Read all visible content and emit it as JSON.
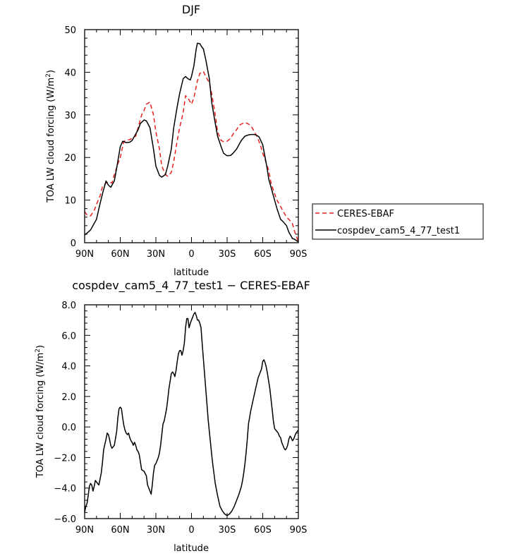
{
  "chart_data": [
    {
      "type": "line",
      "title": "DJF",
      "xlabel": "latitude",
      "ylabel": "TOA LW cloud forcing (W/m",
      "ylabel_sup": "2",
      "ylabel_end": ")",
      "xlim": [
        90,
        -90
      ],
      "ylim": [
        0,
        50
      ],
      "x_ticks": [
        90,
        60,
        30,
        0,
        -30,
        -60,
        -90
      ],
      "x_tick_labels": [
        "90N",
        "60N",
        "30N",
        "0",
        "30S",
        "60S",
        "90S"
      ],
      "y_ticks": [
        0,
        10,
        20,
        30,
        40,
        50
      ],
      "y_tick_labels": [
        "0",
        "10",
        "20",
        "30",
        "40",
        "50"
      ],
      "legend_position": "right",
      "series": [
        {
          "name": "CERES-EBAF",
          "color": "#e8201f",
          "dash": "dashed",
          "x": [
            90,
            88,
            85,
            82,
            80,
            77,
            75,
            72,
            70,
            67,
            65,
            62,
            60,
            57,
            55,
            52,
            50,
            47,
            45,
            42,
            40,
            38,
            35,
            32,
            30,
            27,
            25,
            22,
            20,
            17,
            15,
            12,
            10,
            7,
            5,
            3,
            0,
            -2,
            -5,
            -7,
            -10,
            -12,
            -15,
            -17,
            -20,
            -22,
            -25,
            -27,
            -30,
            -33,
            -35,
            -38,
            -40,
            -43,
            -45,
            -47,
            -50,
            -52,
            -55,
            -58,
            -60,
            -62,
            -65,
            -67,
            -70,
            -72,
            -75,
            -78,
            -80,
            -82,
            -85,
            -87,
            -90
          ],
          "y": [
            7.3,
            6.5,
            6.3,
            7.5,
            9,
            11,
            13.2,
            14,
            14.3,
            14,
            16,
            18.5,
            20,
            23.8,
            24,
            24.2,
            24.5,
            25,
            27,
            30,
            31,
            32.5,
            33,
            30,
            26,
            22,
            18,
            16,
            15.6,
            16.5,
            19,
            24,
            27,
            30.5,
            34.5,
            34,
            32.5,
            34,
            38,
            39.7,
            40.2,
            39,
            37.5,
            35,
            30,
            26,
            24,
            23.7,
            23.8,
            24.5,
            25.5,
            26.5,
            27.5,
            28,
            28.2,
            28,
            27.5,
            26.5,
            25,
            23,
            21,
            19.5,
            17,
            14,
            11.5,
            10,
            8.5,
            7,
            6,
            5.5,
            4.5,
            2.5,
            0.3
          ]
        },
        {
          "name": "cospdev_cam5_4_77_test1",
          "color": "#000000",
          "dash": "solid",
          "x": [
            90,
            87,
            85,
            82,
            80,
            78,
            75,
            73,
            72,
            70,
            68,
            67,
            65,
            63,
            60,
            58,
            55,
            52,
            50,
            48,
            45,
            43,
            40,
            38,
            35,
            32,
            30,
            27,
            25,
            22,
            20,
            17,
            15,
            12,
            10,
            7,
            5,
            3,
            1,
            0,
            -2,
            -4,
            -5,
            -7,
            -9,
            -10,
            -12,
            -15,
            -17,
            -20,
            -22,
            -25,
            -27,
            -30,
            -33,
            -35,
            -38,
            -40,
            -42,
            -45,
            -48,
            -50,
            -53,
            -55,
            -57,
            -60,
            -62,
            -64,
            -65,
            -67,
            -70,
            -72,
            -75,
            -77,
            -80,
            -82,
            -85,
            -87,
            -90
          ],
          "y": [
            1.8,
            2.5,
            3,
            4.5,
            5.5,
            8,
            11.5,
            13.5,
            14.5,
            13.5,
            13,
            13.5,
            14.5,
            17.5,
            22.5,
            23.8,
            23.5,
            23.6,
            24,
            25,
            26.5,
            28,
            28.8,
            28.6,
            27,
            22,
            18,
            15.8,
            15.4,
            16,
            18,
            22,
            27,
            32,
            35,
            38.5,
            39,
            38.5,
            38.2,
            39,
            41.5,
            45.5,
            46.8,
            46.7,
            45.8,
            45.5,
            43,
            38.5,
            33,
            28,
            25,
            22.5,
            21,
            20.4,
            20.5,
            21,
            22,
            23,
            24,
            25,
            25.3,
            25.4,
            25.4,
            25.2,
            24.8,
            23,
            20,
            17,
            15,
            13,
            10,
            8,
            5.5,
            5,
            4,
            2.5,
            1,
            0.8,
            0.2
          ]
        }
      ]
    },
    {
      "type": "line",
      "title": "cospdev_cam5_4_77_test1 − CERES-EBAF",
      "xlabel": "latitude",
      "ylabel": "TOA LW cloud forcing (W/m",
      "ylabel_sup": "2",
      "ylabel_end": ")",
      "xlim": [
        90,
        -90
      ],
      "ylim": [
        -6,
        8
      ],
      "x_ticks": [
        90,
        60,
        30,
        0,
        -30,
        -60,
        -90
      ],
      "x_tick_labels": [
        "90N",
        "60N",
        "30N",
        "0",
        "30S",
        "60S",
        "90S"
      ],
      "y_ticks": [
        -6,
        -4,
        -2,
        0,
        2,
        4,
        6,
        8
      ],
      "y_tick_labels": [
        "−6.0",
        "−4.0",
        "−2.0",
        "0.0",
        "2.0",
        "4.0",
        "6.0",
        "8.0"
      ],
      "series": [
        {
          "color": "#000000",
          "dash": "solid",
          "x": [
            90,
            89,
            88,
            87,
            86,
            85,
            84,
            83,
            82,
            81,
            80,
            78,
            76,
            75,
            74,
            72,
            71,
            70,
            69,
            68,
            67,
            66,
            65,
            63,
            62,
            61,
            60,
            59,
            58,
            57,
            56,
            55,
            54,
            53,
            52,
            51,
            50,
            49,
            48,
            47,
            46,
            45,
            44,
            42,
            40,
            38,
            37,
            36,
            35,
            34,
            33,
            32,
            31,
            30,
            29,
            28,
            27,
            26,
            25,
            24,
            23,
            22,
            21,
            20,
            19,
            18,
            17,
            16,
            15,
            14,
            13,
            12,
            11,
            10,
            9,
            8,
            7,
            6,
            5,
            4,
            3,
            2,
            1,
            0,
            -1,
            -2,
            -3,
            -4,
            -5,
            -6,
            -7,
            -8,
            -9,
            -10,
            -11,
            -12,
            -13,
            -14,
            -15,
            -16,
            -17,
            -18,
            -19,
            -20,
            -22,
            -24,
            -26,
            -28,
            -30,
            -32,
            -34,
            -36,
            -38,
            -40,
            -42,
            -43,
            -44,
            -45,
            -46,
            -47,
            -48,
            -50,
            -52,
            -54,
            -56,
            -57,
            -58,
            -59,
            -60,
            -61,
            -62,
            -63,
            -64,
            -65,
            -66,
            -67,
            -68,
            -69,
            -70,
            -71,
            -72,
            -73,
            -74,
            -75,
            -76,
            -77,
            -78,
            -79,
            -80,
            -81,
            -82,
            -83,
            -84,
            -85,
            -86,
            -87,
            -88,
            -89,
            -90
          ],
          "y": [
            -5.6,
            -5.2,
            -5,
            -4.5,
            -3.9,
            -3.7,
            -3.8,
            -4.2,
            -3.9,
            -3.5,
            -3.6,
            -3.8,
            -3,
            -2.3,
            -1.5,
            -0.8,
            -0.4,
            -0.5,
            -0.8,
            -1.2,
            -1.4,
            -1.3,
            -1.2,
            -0.3,
            0.6,
            1.2,
            1.3,
            1.2,
            0.6,
            0.1,
            -0.2,
            -0.4,
            -0.5,
            -0.4,
            -0.7,
            -0.9,
            -1,
            -1.2,
            -1,
            -1.2,
            -1.5,
            -1.6,
            -1.8,
            -2.8,
            -2.9,
            -3.2,
            -3.8,
            -4,
            -4.2,
            -4.4,
            -3.8,
            -3,
            -2.5,
            -2.4,
            -2.2,
            -2,
            -1.7,
            -1.2,
            -0.5,
            0.2,
            0.4,
            0.8,
            1.2,
            1.8,
            2.5,
            3,
            3.5,
            3.6,
            3.5,
            3.3,
            3.7,
            4.3,
            4.8,
            5,
            5,
            4.7,
            5,
            5.5,
            6.5,
            7.1,
            7.1,
            6.5,
            6.8,
            7,
            7.2,
            7.4,
            7.5,
            7.3,
            7,
            7,
            6.8,
            6.5,
            5.5,
            4.5,
            3.5,
            2.5,
            1.5,
            0.5,
            -0.3,
            -1,
            -1.8,
            -2.5,
            -3.1,
            -3.7,
            -4.5,
            -5.2,
            -5.5,
            -5.7,
            -5.8,
            -5.7,
            -5.5,
            -5.2,
            -4.8,
            -4.4,
            -3.9,
            -3.5,
            -3,
            -2.4,
            -1.7,
            -0.8,
            0.2,
            1.1,
            1.8,
            2.5,
            3.2,
            3.4,
            3.6,
            3.8,
            4.3,
            4.4,
            4.2,
            3.9,
            3.5,
            3,
            2.5,
            1.8,
            1.1,
            0.4,
            -0.1,
            -0.2,
            -0.3,
            -0.4,
            -0.6,
            -0.7,
            -1,
            -1.2,
            -1.4,
            -1.5,
            -1.4,
            -1.2,
            -0.8,
            -0.6,
            -0.7,
            -0.9,
            -0.8,
            -0.6,
            -0.4,
            -0.3,
            -0.2
          ]
        }
      ]
    }
  ]
}
